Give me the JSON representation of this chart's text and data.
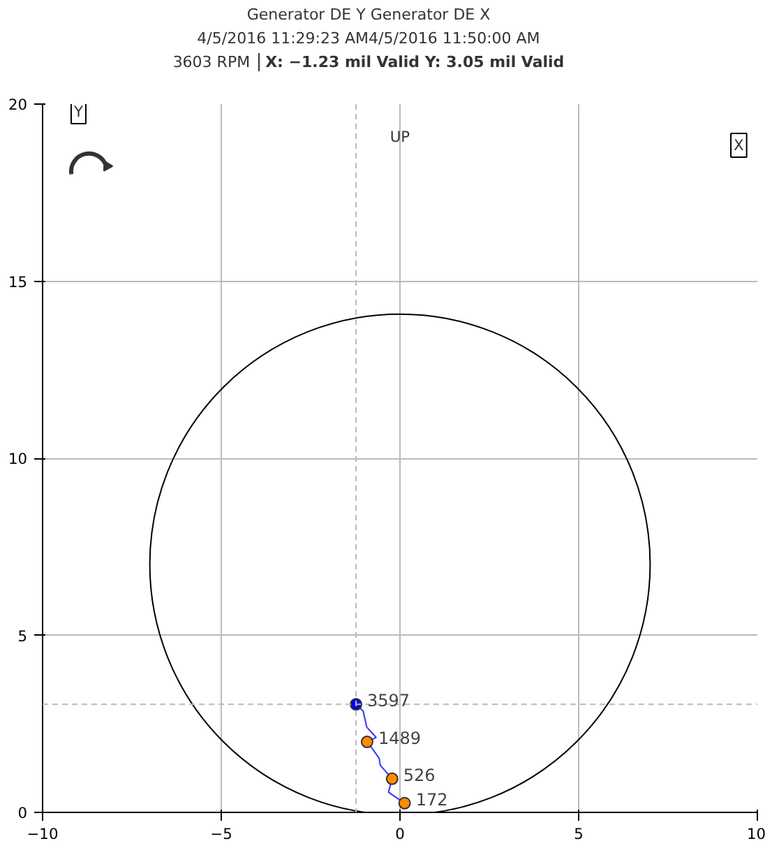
{
  "chart_data": {
    "type": "scatter",
    "title": "Generator DE Y Generator DE X",
    "subtitle": "4/5/2016 11:29:23 AM4/5/2016 11:50:00 AM",
    "annotations": [
      "3603 RPM",
      "X: −1.23 mil  Valid Y: 3.05 mil  Valid",
      "UP",
      "Y",
      "X",
      {
        "text": "172",
        "x": 0.13,
        "y": 0.26
      },
      {
        "text": "526",
        "x": -0.22,
        "y": 0.95
      },
      {
        "text": "1489",
        "x": -0.92,
        "y": 1.99
      },
      {
        "text": "3597",
        "x": -1.23,
        "y": 3.05
      }
    ],
    "xlim": [
      -10,
      10
    ],
    "ylim": [
      0,
      20
    ],
    "xticks": [
      -10,
      -5,
      0,
      5,
      10
    ],
    "yticks": [
      0,
      5,
      10,
      15,
      20
    ],
    "grid": true,
    "ref_lines": [
      {
        "axis": "x",
        "value": -1.23,
        "label": null,
        "color": "#bbbbbb",
        "line_style": "dashed"
      },
      {
        "axis": "y",
        "value": 3.05,
        "label": null,
        "color": "#bbbbbb",
        "line_style": "dashed"
      }
    ],
    "series": [
      {
        "type": "line",
        "color": "#3333ff",
        "marker": "none",
        "x": [
          0.13,
          -0.32,
          -0.22,
          -0.55,
          -0.58,
          -0.8,
          -0.92,
          -0.67,
          -0.93,
          -1.03,
          -1.23
        ],
        "values": [
          0.26,
          0.57,
          0.95,
          1.33,
          1.52,
          1.84,
          1.99,
          2.12,
          2.41,
          2.86,
          3.05
        ]
      },
      {
        "type": "scatter",
        "color": "#ff8c00",
        "marker": "circle",
        "x": [
          0.13,
          -0.22,
          -0.92
        ],
        "values": [
          0.26,
          0.95,
          1.99
        ]
      },
      {
        "type": "scatter",
        "color": "#0000ee",
        "marker": "circle",
        "x": [
          -1.23
        ],
        "values": [
          3.05
        ]
      }
    ]
  }
}
